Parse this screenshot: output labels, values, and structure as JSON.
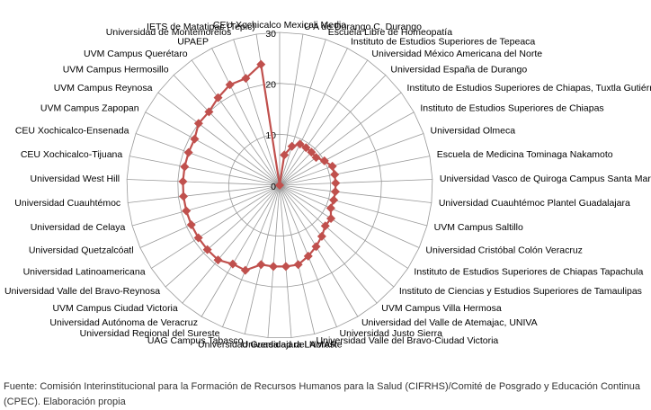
{
  "chart_data": {
    "type": "radar",
    "categories": [
      "CEU Xochicalco Mexicali Media",
      "U A de Durango C. Durango",
      "Escuela Libre de Homeopatía",
      "Instituto de Estudios Superiores de Tepeaca",
      "Universidad México Americana del Norte",
      "Universidad España de Durango",
      "Instituto de Estudios Superiores de Chiapas, Tuxtla Gutiérrez",
      "Instituto de Estudios Superiores de Chiapas",
      "Universidad Olmeca",
      "Escuela de Medicina Tominaga Nakamoto",
      "Universidad Vasco de Quiroga Campus Santa María",
      "Universidad Cuauhtémoc Plantel Guadalajara",
      "UVM Campus Saltillo",
      "Universidad Cristóbal Colón Veracruz",
      "Instituto de Estudios Superiores de Chiapas Tapachula",
      "Instituto de Ciencias y Estudios Superiores de Tamaulipas",
      "UVM Campus Villa Hermosa",
      "Universidad del Valle de Atemajac, UNIVA",
      "Universidad Justo Sierra",
      "Universidad Valle del Bravo-Ciudad Victoria",
      "Universidad del Noreste",
      "Universidad Guadalajara LAMAR",
      "UAG Campus Tabasco",
      "Universidad Regional del Sureste",
      "Universidad Autónoma de Veracruz",
      "UVM Campus Ciudad Victoria",
      "Universidad Valle del Bravo-Reynosa",
      "Universidad Latinoamericana",
      "Universidad Quetzalcóatl",
      "Universidad de Celaya",
      "Universidad Cuauhtémoc",
      "Universidad West Hill",
      "CEU Xochicalco-Tijuana",
      "CEU Xochicalco-Ensenada",
      "UVM Campus Zapopan",
      "UVM Campus Reynosa",
      "UVM Campus Hermosillo",
      "UVM Campus Querétaro",
      "UPAEP",
      "Universidad de Montemorelos",
      "IETS de Matatipac (Tepic)"
    ],
    "values": [
      0,
      6,
      8,
      9,
      9,
      9,
      9,
      10,
      11,
      11,
      11,
      11,
      11,
      11,
      12,
      12,
      13,
      14,
      15,
      16,
      16,
      16,
      16,
      18,
      18,
      19,
      19,
      19,
      19,
      19,
      19,
      19,
      19,
      19,
      19,
      20,
      20,
      21,
      22,
      22,
      24
    ],
    "color": "#c0504d",
    "ylim": [
      0,
      30
    ],
    "yticks": [
      0,
      10,
      20,
      30
    ],
    "grid": true,
    "source": "Fuente: Comisión Interinstitucional para la Formación de Recursos Humanos para la Salud (CIFRHS)/Comité de Posgrado y Educación Continua (CPEC). Elaboración propia"
  }
}
